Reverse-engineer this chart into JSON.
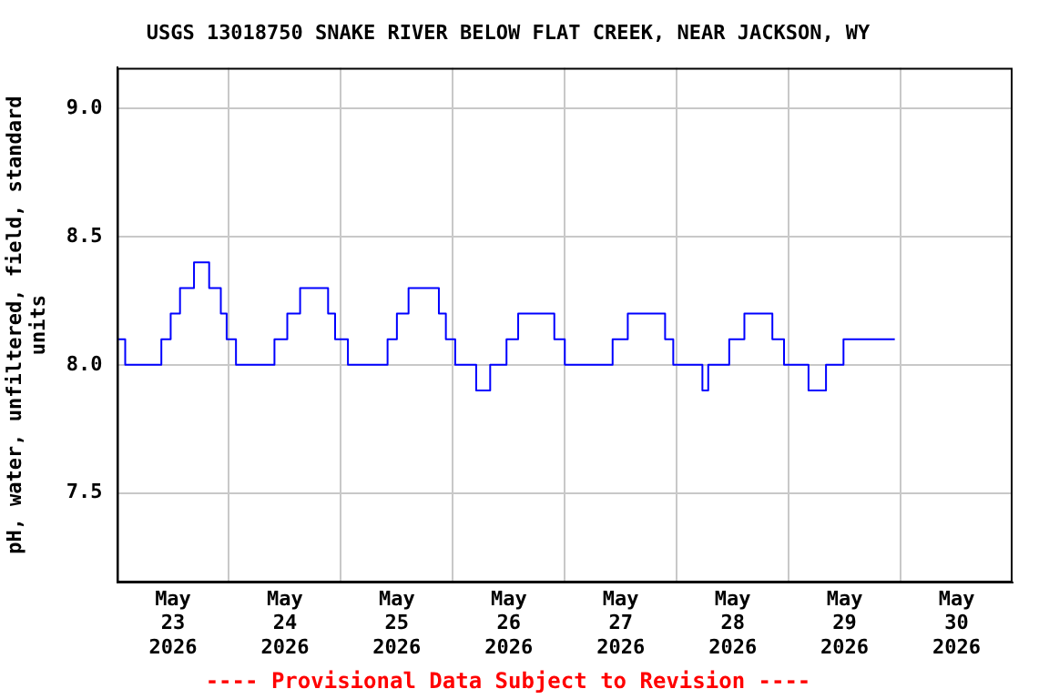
{
  "chart_data": {
    "type": "step",
    "title": "USGS 13018750 SNAKE RIVER BELOW FLAT CREEK, NEAR JACKSON, WY",
    "ylabel": "pH, water, unfiltered, field, standard units",
    "annotations": [
      "---- Provisional Data Subject to Revision ----"
    ],
    "x": [
      "2026-05-23T00:00",
      "2026-05-23T01:45",
      "2026-05-23T09:30",
      "2026-05-23T11:30",
      "2026-05-23T13:30",
      "2026-05-23T16:30",
      "2026-05-23T19:45",
      "2026-05-23T22:15",
      "2026-05-23T23:30",
      "2026-05-24T01:30",
      "2026-05-24T09:45",
      "2026-05-24T12:30",
      "2026-05-24T15:15",
      "2026-05-24T21:15",
      "2026-05-24T22:45",
      "2026-05-25T01:30",
      "2026-05-25T10:00",
      "2026-05-25T12:00",
      "2026-05-25T14:30",
      "2026-05-25T21:00",
      "2026-05-25T22:30",
      "2026-05-26T00:30",
      "2026-05-26T05:00",
      "2026-05-26T08:00",
      "2026-05-26T11:30",
      "2026-05-26T14:00",
      "2026-05-26T21:45",
      "2026-05-27T00:00",
      "2026-05-27T10:15",
      "2026-05-27T13:30",
      "2026-05-27T21:30",
      "2026-05-27T23:15",
      "2026-05-28T05:30",
      "2026-05-28T06:45",
      "2026-05-28T11:15",
      "2026-05-28T14:30",
      "2026-05-28T20:30",
      "2026-05-28T23:00",
      "2026-05-29T04:15",
      "2026-05-29T08:00",
      "2026-05-29T11:45",
      "2026-05-29T22:45"
    ],
    "series": [
      {
        "color": "#0000ff",
        "values": [
          8.1,
          8.0,
          8.1,
          8.2,
          8.3,
          8.4,
          8.3,
          8.2,
          8.1,
          8.0,
          8.1,
          8.2,
          8.3,
          8.2,
          8.1,
          8.0,
          8.1,
          8.2,
          8.3,
          8.2,
          8.1,
          8.0,
          7.9,
          8.0,
          8.1,
          8.2,
          8.1,
          8.0,
          8.1,
          8.2,
          8.1,
          8.0,
          7.9,
          8.0,
          8.1,
          8.2,
          8.1,
          8.0,
          7.9,
          8.0,
          8.1,
          8.1
        ]
      }
    ],
    "xlim": [
      "2026-05-23T00:00",
      "2026-05-31T00:00"
    ],
    "xticks": [
      {
        "value": "2026-05-23T12:00",
        "label": "May 23 2026"
      },
      {
        "value": "2026-05-24T00:00",
        "label": null
      },
      {
        "value": "2026-05-24T12:00",
        "label": "May 24 2026"
      },
      {
        "value": "2026-05-25T00:00",
        "label": null
      },
      {
        "value": "2026-05-25T12:00",
        "label": "May 25 2026"
      },
      {
        "value": "2026-05-26T00:00",
        "label": null
      },
      {
        "value": "2026-05-26T12:00",
        "label": "May 26 2026"
      },
      {
        "value": "2026-05-27T00:00",
        "label": null
      },
      {
        "value": "2026-05-27T12:00",
        "label": "May 27 2026"
      },
      {
        "value": "2026-05-28T00:00",
        "label": null
      },
      {
        "value": "2026-05-28T12:00",
        "label": "May 28 2026"
      },
      {
        "value": "2026-05-29T00:00",
        "label": null
      },
      {
        "value": "2026-05-29T12:00",
        "label": "May 29 2026"
      },
      {
        "value": "2026-05-30T00:00",
        "label": null
      },
      {
        "value": "2026-05-30T12:00",
        "label": "May 30 2026"
      }
    ],
    "ylim": [
      7.15,
      9.16
    ],
    "yticks": [
      {
        "value": 7.5,
        "label": "7.5"
      },
      {
        "value": 8.0,
        "label": "8.0"
      },
      {
        "value": 8.5,
        "label": "8.5"
      },
      {
        "value": 9.0,
        "label": "9.0"
      }
    ],
    "grid": true,
    "legend": false,
    "line_style": "solid",
    "marker": "none"
  }
}
